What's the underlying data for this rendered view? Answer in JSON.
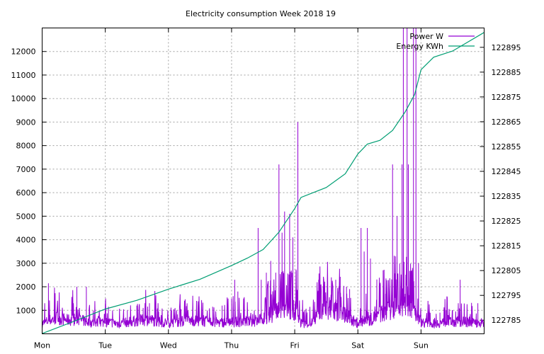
{
  "chart_data": {
    "type": "line",
    "title": "Electricity consumption Week 2018 19",
    "xlabel": "",
    "ylabel": "",
    "y2label": "",
    "grid": true,
    "legend_placement": "top-right",
    "x_ticks": [
      "Mon",
      "Tue",
      "Wed",
      "Thu",
      "Fri",
      "Sat",
      "Sun"
    ],
    "xlim": [
      0,
      7
    ],
    "ylim": [
      0,
      13000
    ],
    "y_ticks": [
      1000,
      2000,
      3000,
      4000,
      5000,
      6000,
      7000,
      8000,
      9000,
      10000,
      11000,
      12000
    ],
    "y2lim": [
      122779.5,
      122902.8
    ],
    "y2_ticks": [
      122785,
      122795,
      122805,
      122815,
      122825,
      122835,
      122845,
      122855,
      122865,
      122875,
      122885,
      122895
    ],
    "series": [
      {
        "name": "Power W",
        "axis": "left",
        "color": "#9400d3",
        "baseline_profile": [
          [
            0.0,
            420
          ],
          [
            0.1,
            560
          ],
          [
            0.25,
            680
          ],
          [
            0.4,
            580
          ],
          [
            0.55,
            620
          ],
          [
            0.7,
            520
          ],
          [
            0.8,
            470
          ],
          [
            1.0,
            500
          ],
          [
            1.2,
            440
          ],
          [
            1.4,
            520
          ],
          [
            1.5,
            560
          ],
          [
            1.7,
            600
          ],
          [
            1.9,
            480
          ],
          [
            2.0,
            470
          ],
          [
            2.2,
            520
          ],
          [
            2.4,
            560
          ],
          [
            2.6,
            520
          ],
          [
            2.8,
            480
          ],
          [
            3.0,
            500
          ],
          [
            3.2,
            520
          ],
          [
            3.4,
            520
          ],
          [
            3.6,
            800
          ],
          [
            3.8,
            1000
          ],
          [
            4.0,
            1000
          ],
          [
            4.1,
            460
          ],
          [
            4.25,
            420
          ],
          [
            4.4,
            900
          ],
          [
            4.6,
            1000
          ],
          [
            4.8,
            800
          ],
          [
            5.0,
            420
          ],
          [
            5.2,
            600
          ],
          [
            5.4,
            900
          ],
          [
            5.55,
            1100
          ],
          [
            5.7,
            1200
          ],
          [
            5.85,
            1200
          ],
          [
            6.0,
            500
          ],
          [
            6.2,
            420
          ],
          [
            6.4,
            500
          ],
          [
            6.6,
            520
          ],
          [
            6.8,
            480
          ],
          [
            6.95,
            440
          ],
          [
            7.0,
            460
          ]
        ],
        "peaks": [
          [
            0.1,
            2150
          ],
          [
            0.2,
            1300
          ],
          [
            0.55,
            2000
          ],
          [
            0.7,
            2000
          ],
          [
            1.05,
            1150
          ],
          [
            1.35,
            1000
          ],
          [
            1.5,
            1200
          ],
          [
            1.6,
            1100
          ],
          [
            1.7,
            1300
          ],
          [
            2.05,
            1000
          ],
          [
            2.2,
            1050
          ],
          [
            2.7,
            1150
          ],
          [
            2.85,
            1200
          ],
          [
            3.0,
            1500
          ],
          [
            3.05,
            2300
          ],
          [
            3.1,
            1800
          ],
          [
            3.42,
            4500
          ],
          [
            3.47,
            2300
          ],
          [
            3.55,
            2600
          ],
          [
            3.62,
            3100
          ],
          [
            3.7,
            2600
          ],
          [
            3.75,
            7200
          ],
          [
            3.8,
            4300
          ],
          [
            3.84,
            5200
          ],
          [
            3.92,
            5100
          ],
          [
            3.97,
            4100
          ],
          [
            4.05,
            9000
          ],
          [
            4.38,
            2300
          ],
          [
            4.45,
            2000
          ],
          [
            4.58,
            2400
          ],
          [
            4.65,
            2300
          ],
          [
            4.72,
            2100
          ],
          [
            4.82,
            2000
          ],
          [
            4.87,
            1900
          ],
          [
            5.05,
            4500
          ],
          [
            5.1,
            3500
          ],
          [
            5.15,
            4500
          ],
          [
            5.2,
            3200
          ],
          [
            5.3,
            1600
          ],
          [
            5.4,
            2700
          ],
          [
            5.44,
            1700
          ],
          [
            5.55,
            7200
          ],
          [
            5.62,
            5000
          ],
          [
            5.7,
            7200
          ],
          [
            5.72,
            13000
          ],
          [
            5.78,
            13000
          ],
          [
            5.8,
            7200
          ],
          [
            5.88,
            13000
          ],
          [
            5.92,
            13000
          ],
          [
            5.96,
            3000
          ],
          [
            6.3,
            900
          ],
          [
            6.4,
            1000
          ],
          [
            6.5,
            1000
          ],
          [
            6.62,
            2300
          ],
          [
            6.8,
            1300
          ],
          [
            6.9,
            1300
          ]
        ]
      },
      {
        "name": "Energy KWh",
        "axis": "right",
        "color": "#009e73",
        "points": [
          [
            0.0,
            122779.6
          ],
          [
            0.5,
            122784.5
          ],
          [
            1.0,
            122789.5
          ],
          [
            1.5,
            122793.0
          ],
          [
            2.0,
            122797.5
          ],
          [
            2.5,
            122801.5
          ],
          [
            3.0,
            122807.0
          ],
          [
            3.25,
            122810.0
          ],
          [
            3.5,
            122813.5
          ],
          [
            3.75,
            122820.5
          ],
          [
            4.0,
            122830.0
          ],
          [
            4.1,
            122834.5
          ],
          [
            4.5,
            122838.5
          ],
          [
            4.8,
            122844.0
          ],
          [
            5.0,
            122852.0
          ],
          [
            5.15,
            122856.0
          ],
          [
            5.35,
            122857.5
          ],
          [
            5.55,
            122861.5
          ],
          [
            5.75,
            122869.0
          ],
          [
            5.9,
            122876.0
          ],
          [
            6.0,
            122886.0
          ],
          [
            6.2,
            122891.0
          ],
          [
            6.5,
            122893.5
          ],
          [
            7.0,
            122901.0
          ]
        ]
      }
    ]
  }
}
